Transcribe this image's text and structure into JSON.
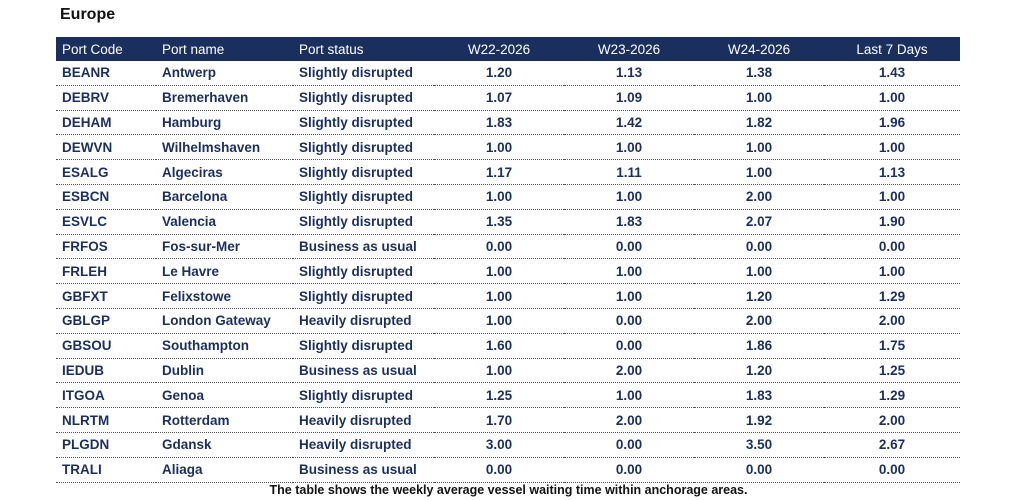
{
  "region_title": "Europe",
  "columns": [
    "Port Code",
    "Port name",
    "Port status",
    "W22-2026",
    "W23-2026",
    "W24-2026",
    "Last 7 Days"
  ],
  "rows": [
    [
      "BEANR",
      "Antwerp",
      "Slightly disrupted",
      "1.20",
      "1.13",
      "1.38",
      "1.43"
    ],
    [
      "DEBRV",
      "Bremerhaven",
      "Slightly disrupted",
      "1.07",
      "1.09",
      "1.00",
      "1.00"
    ],
    [
      "DEHAM",
      "Hamburg",
      "Slightly disrupted",
      "1.83",
      "1.42",
      "1.82",
      "1.96"
    ],
    [
      "DEWVN",
      "Wilhelmshaven",
      "Slightly disrupted",
      "1.00",
      "1.00",
      "1.00",
      "1.00"
    ],
    [
      "ESALG",
      "Algeciras",
      "Slightly disrupted",
      "1.17",
      "1.11",
      "1.00",
      "1.13"
    ],
    [
      "ESBCN",
      "Barcelona",
      "Slightly disrupted",
      "1.00",
      "1.00",
      "2.00",
      "1.00"
    ],
    [
      "ESVLC",
      "Valencia",
      "Slightly disrupted",
      "1.35",
      "1.83",
      "2.07",
      "1.90"
    ],
    [
      "FRFOS",
      "Fos-sur-Mer",
      "Business as usual",
      "0.00",
      "0.00",
      "0.00",
      "0.00"
    ],
    [
      "FRLEH",
      "Le Havre",
      "Slightly disrupted",
      "1.00",
      "1.00",
      "1.00",
      "1.00"
    ],
    [
      "GBFXT",
      "Felixstowe",
      "Slightly disrupted",
      "1.00",
      "1.00",
      "1.20",
      "1.29"
    ],
    [
      "GBLGP",
      "London Gateway",
      "Heavily disrupted",
      "1.00",
      "0.00",
      "2.00",
      "2.00"
    ],
    [
      "GBSOU",
      "Southampton",
      "Slightly disrupted",
      "1.60",
      "0.00",
      "1.86",
      "1.75"
    ],
    [
      "IEDUB",
      "Dublin",
      "Business as usual",
      "1.00",
      "2.00",
      "1.20",
      "1.25"
    ],
    [
      "ITGOA",
      "Genoa",
      "Slightly disrupted",
      "1.25",
      "1.00",
      "1.83",
      "1.29"
    ],
    [
      "NLRTM",
      "Rotterdam",
      "Heavily disrupted",
      "1.70",
      "2.00",
      "1.92",
      "2.00"
    ],
    [
      "PLGDN",
      "Gdansk",
      "Heavily disrupted",
      "3.00",
      "0.00",
      "3.50",
      "2.67"
    ],
    [
      "TRALI",
      "Aliaga",
      "Business as usual",
      "0.00",
      "0.00",
      "0.00",
      "0.00"
    ]
  ],
  "caption": "The table shows the weekly average vessel waiting time within anchorage areas.",
  "colors": {
    "header_bg": "#1b2f5f",
    "header_text": "#ffffff",
    "cell_text": "#1b2f5f"
  }
}
